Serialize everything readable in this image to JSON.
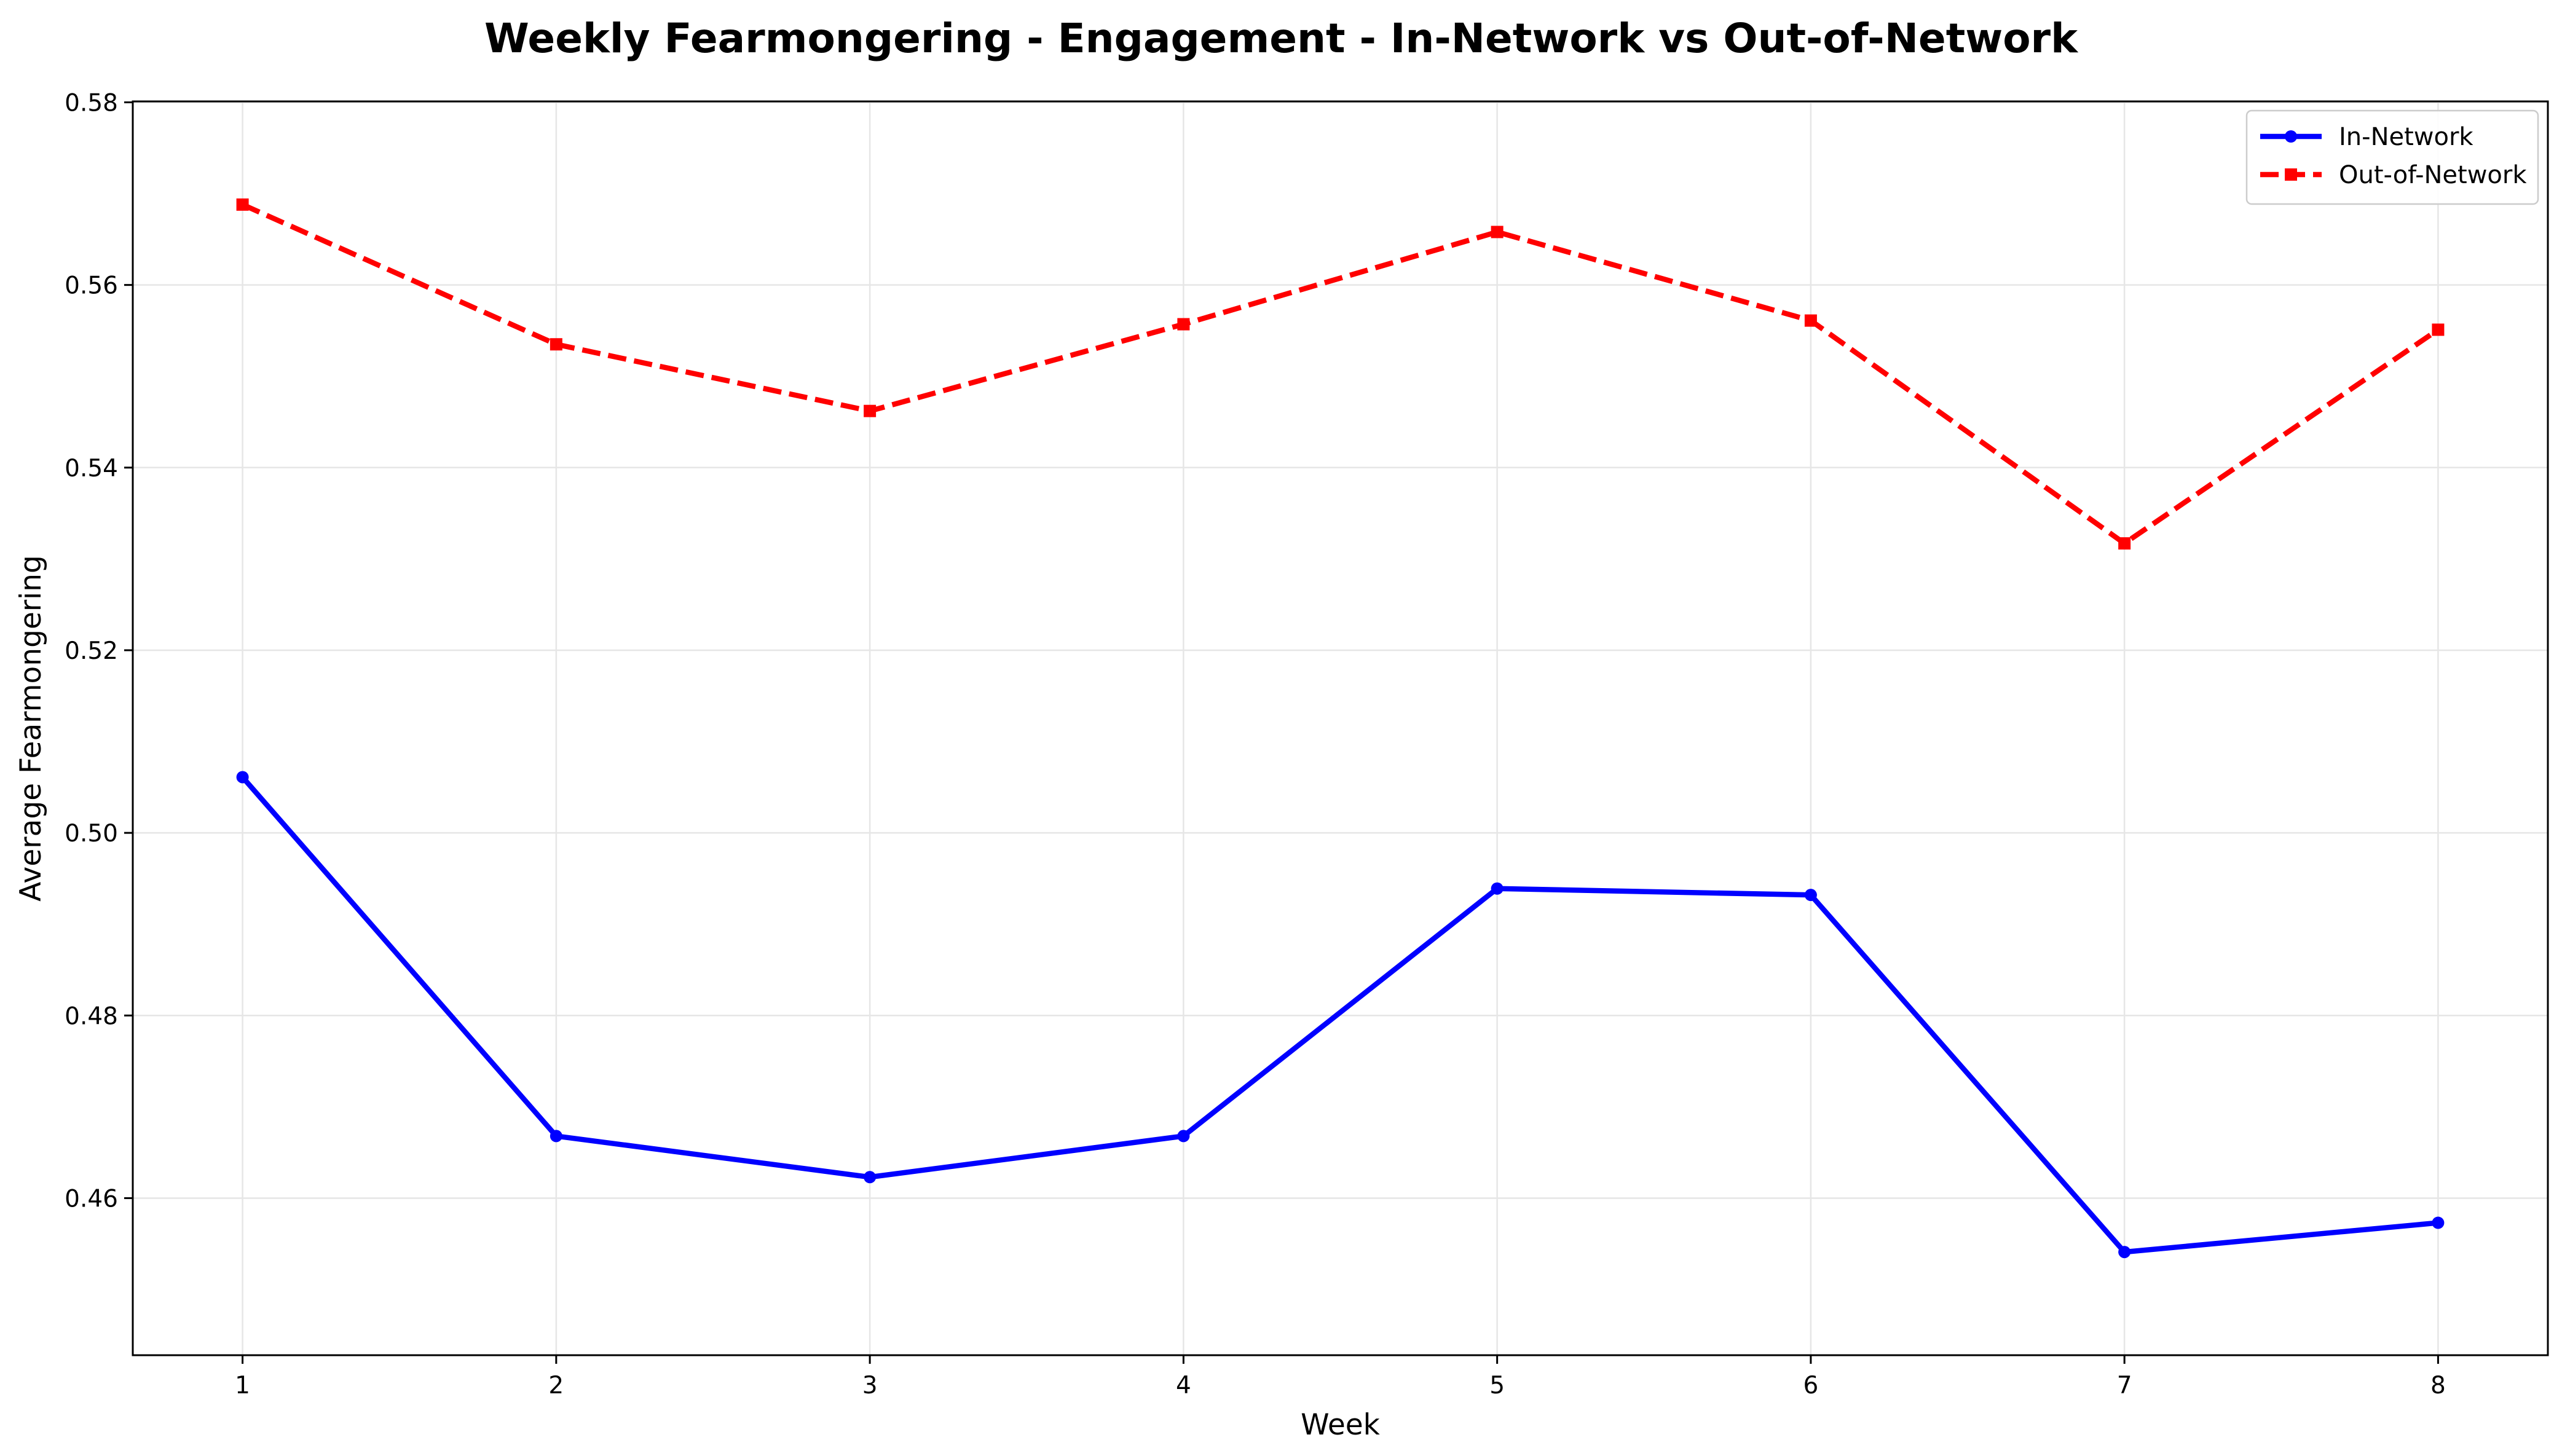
{
  "chart_data": {
    "type": "line",
    "title": "Weekly Fearmongering - Engagement - In-Network vs Out-of-Network",
    "xlabel": "Week",
    "ylabel": "Average Fearmongering",
    "x": [
      1,
      2,
      3,
      4,
      5,
      6,
      7,
      8
    ],
    "xticks": [
      "1",
      "2",
      "3",
      "4",
      "5",
      "6",
      "7",
      "8"
    ],
    "yticks": [
      "0.46",
      "0.48",
      "0.50",
      "0.52",
      "0.54",
      "0.56",
      "0.58"
    ],
    "xlim": [
      0.65,
      8.35
    ],
    "ylim": [
      0.4428,
      0.5801
    ],
    "grid": true,
    "legend_position": "top-right",
    "series": [
      {
        "name": "In-Network",
        "color": "#0000ff",
        "line_style": "solid",
        "marker": "circle",
        "values": [
          0.5061,
          0.4668,
          0.4623,
          0.4668,
          0.4939,
          0.4932,
          0.4541,
          0.4573
        ]
      },
      {
        "name": "Out-of-Network",
        "color": "#ff0000",
        "line_style": "dashed",
        "marker": "square",
        "values": [
          0.5688,
          0.5535,
          0.5462,
          0.5557,
          0.5658,
          0.5561,
          0.5317,
          0.5551
        ]
      }
    ]
  }
}
